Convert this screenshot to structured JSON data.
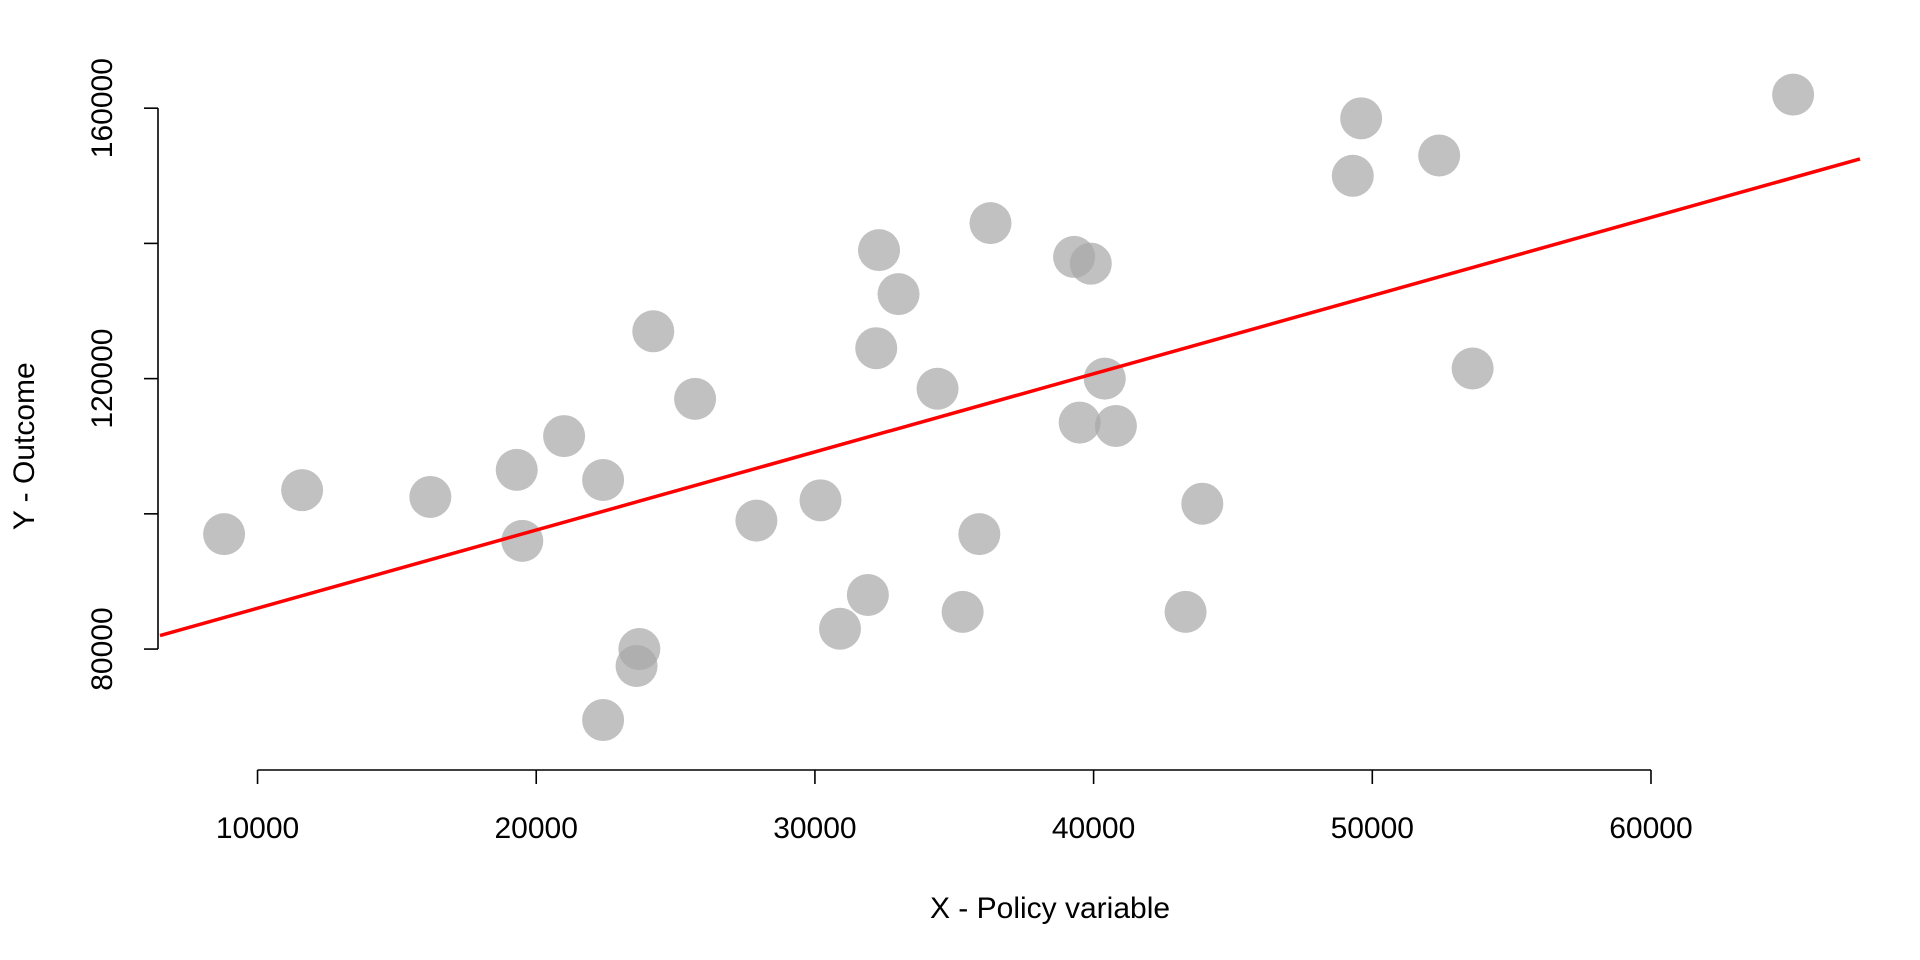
{
  "chart_data": {
    "type": "scatter",
    "title": "",
    "xlabel": "X - Policy variable",
    "ylabel": "Y - Outcome",
    "xlim": [
      6500,
      67500
    ],
    "ylim": [
      63000,
      176000
    ],
    "x_ticks": [
      10000,
      20000,
      30000,
      40000,
      50000,
      60000
    ],
    "y_ticks": [
      80000,
      120000,
      160000
    ],
    "y_ticks_minor": [
      80000,
      100000,
      120000,
      140000,
      160000
    ],
    "x_tick_labels": [
      "10000",
      "20000",
      "30000",
      "40000",
      "50000",
      "60000"
    ],
    "y_tick_labels": [
      "80000",
      "120000",
      "160000"
    ],
    "grid": false,
    "point_color": "#a6a6a6",
    "point_opacity": 0.7,
    "line_color": "#ff0000",
    "regression_line": {
      "x": [
        6500,
        67500
      ],
      "y": [
        82000,
        152500
      ]
    },
    "points": [
      {
        "x": 8800,
        "y": 97000
      },
      {
        "x": 11600,
        "y": 103500
      },
      {
        "x": 16200,
        "y": 102500
      },
      {
        "x": 19300,
        "y": 106500
      },
      {
        "x": 19500,
        "y": 96000
      },
      {
        "x": 21000,
        "y": 111500
      },
      {
        "x": 22400,
        "y": 105000
      },
      {
        "x": 22400,
        "y": 69500
      },
      {
        "x": 23600,
        "y": 77500
      },
      {
        "x": 23700,
        "y": 80000
      },
      {
        "x": 24200,
        "y": 127000
      },
      {
        "x": 25700,
        "y": 117000
      },
      {
        "x": 27900,
        "y": 99000
      },
      {
        "x": 30200,
        "y": 102000
      },
      {
        "x": 30900,
        "y": 83000
      },
      {
        "x": 31900,
        "y": 88000
      },
      {
        "x": 32200,
        "y": 124500
      },
      {
        "x": 32300,
        "y": 139000
      },
      {
        "x": 33000,
        "y": 132500
      },
      {
        "x": 34400,
        "y": 118500
      },
      {
        "x": 35300,
        "y": 85500
      },
      {
        "x": 35900,
        "y": 97000
      },
      {
        "x": 36300,
        "y": 143000
      },
      {
        "x": 39300,
        "y": 138000
      },
      {
        "x": 39500,
        "y": 113500
      },
      {
        "x": 39900,
        "y": 137000
      },
      {
        "x": 40400,
        "y": 120000
      },
      {
        "x": 40800,
        "y": 113000
      },
      {
        "x": 43300,
        "y": 85500
      },
      {
        "x": 43900,
        "y": 101500
      },
      {
        "x": 49300,
        "y": 150000
      },
      {
        "x": 49600,
        "y": 158500
      },
      {
        "x": 52400,
        "y": 153000
      },
      {
        "x": 53600,
        "y": 121500
      },
      {
        "x": 65100,
        "y": 162000
      }
    ]
  }
}
